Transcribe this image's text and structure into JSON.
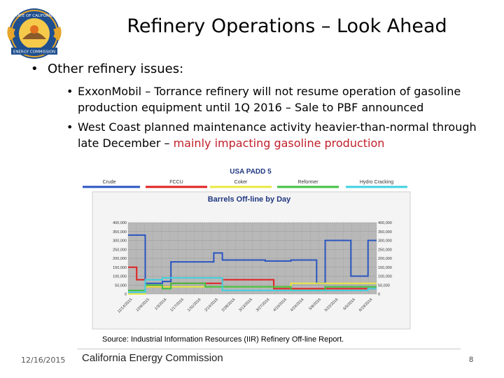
{
  "slide": {
    "title": "Refinery Operations – Look Ahead",
    "bullet1": "Other refinery issues:",
    "sub1": "ExxonMobil – Torrance refinery will not resume operation of gasoline production equipment until 1Q 2016 – Sale to PBF announced",
    "sub2_black": "West Coast planned maintenance activity heavier-than-normal through late December – ",
    "sub2_red": "mainly impacting gasoline production",
    "source": "Source: Industrial Information Resources (IIR) Refinery Off-line Report.",
    "date": "12/16/2015",
    "org": "California Energy Commission",
    "page": "8"
  },
  "logo": {
    "ring_top": "STATE OF CALIFORNIA",
    "ring_bottom": "ENERGY COMMISSION"
  },
  "chart_data": {
    "type": "line",
    "header": "USA PADD 5",
    "title": "Barrels Off-line by Day",
    "legend": [
      "Crude",
      "FCCU",
      "Coker",
      "Reformer",
      "Hydro Cracking"
    ],
    "colors": {
      "Crude": "#2a55c0",
      "FCCU": "#e02020",
      "Coker": "#e8e840",
      "Reformer": "#40c040",
      "Hydro Cracking": "#40d0e0"
    },
    "y_left_ticks": [
      "400,000",
      "350,000",
      "300,000",
      "250,000",
      "200,000",
      "150,000",
      "100,000",
      "50,000",
      "0"
    ],
    "y_right_ticks": [
      "400,000",
      "350,000",
      "300,000",
      "250,000",
      "200,000",
      "150,000",
      "100,000",
      "50,000",
      "0"
    ],
    "ylim": [
      0,
      400000
    ],
    "x_ticks": [
      "11/14/2015",
      "12/6/2015",
      "1/3/2016",
      "1/17/2016",
      "1/31/2016",
      "2/14/2016",
      "2/28/2016",
      "3/13/2016",
      "3/27/2016",
      "4/10/2016",
      "4/24/2016",
      "5/8/2016",
      "5/22/2016",
      "6/5/2016",
      "6/19/2016"
    ],
    "x": [
      0,
      1,
      2,
      3,
      4,
      5,
      6,
      7,
      8,
      9,
      10,
      11,
      12,
      13,
      14,
      15,
      16,
      17,
      18,
      19,
      20,
      21,
      22,
      23,
      24,
      25,
      26,
      27,
      28,
      29
    ],
    "series": [
      {
        "name": "Crude",
        "values": [
          330000,
          330000,
          60000,
          60000,
          70000,
          180000,
          180000,
          180000,
          180000,
          180000,
          230000,
          190000,
          190000,
          190000,
          190000,
          190000,
          185000,
          185000,
          185000,
          190000,
          190000,
          190000,
          60000,
          300000,
          300000,
          300000,
          100000,
          100000,
          300000,
          300000
        ]
      },
      {
        "name": "FCCU",
        "values": [
          150000,
          80000,
          40000,
          40000,
          40000,
          60000,
          60000,
          60000,
          60000,
          60000,
          60000,
          80000,
          80000,
          80000,
          80000,
          80000,
          80000,
          30000,
          30000,
          30000,
          30000,
          30000,
          30000,
          30000,
          30000,
          30000,
          30000,
          30000,
          30000,
          30000
        ]
      },
      {
        "name": "Coker",
        "values": [
          0,
          0,
          40000,
          40000,
          40000,
          40000,
          40000,
          40000,
          40000,
          40000,
          40000,
          40000,
          40000,
          40000,
          40000,
          40000,
          40000,
          40000,
          40000,
          60000,
          60000,
          60000,
          60000,
          60000,
          60000,
          60000,
          60000,
          60000,
          60000,
          60000
        ]
      },
      {
        "name": "Reformer",
        "values": [
          20000,
          20000,
          50000,
          50000,
          30000,
          60000,
          60000,
          60000,
          60000,
          40000,
          40000,
          40000,
          40000,
          40000,
          40000,
          40000,
          40000,
          40000,
          40000,
          20000,
          20000,
          20000,
          20000,
          40000,
          40000,
          40000,
          40000,
          40000,
          40000,
          40000
        ]
      },
      {
        "name": "Hydro Cracking",
        "values": [
          10000,
          10000,
          80000,
          80000,
          90000,
          90000,
          90000,
          90000,
          90000,
          90000,
          90000,
          20000,
          20000,
          20000,
          20000,
          20000,
          20000,
          20000,
          20000,
          20000,
          20000,
          20000,
          20000,
          20000,
          20000,
          20000,
          20000,
          20000,
          30000,
          30000
        ]
      }
    ]
  }
}
